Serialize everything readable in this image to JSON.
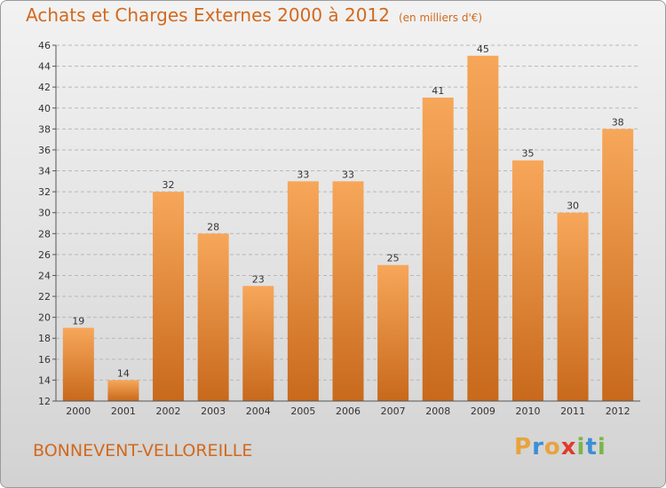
{
  "header": {
    "title": "Achats et Charges Externes 2000 à 2012",
    "unit": "(en milliers d'€)"
  },
  "footer": {
    "commune": "BONNEVENT-VELLOREILLE"
  },
  "logo": {
    "letters": [
      "P",
      "r",
      "o",
      "x",
      "i",
      "t",
      "i"
    ],
    "colors": [
      "#e8a33d",
      "#3b8fd6",
      "#e8a33d",
      "#e23a2a",
      "#7ab648",
      "#3b8fd6",
      "#7ab648"
    ]
  },
  "colors": {
    "accent": "#d2691e",
    "bar_top": "#f7a75a",
    "bar_bottom": "#c8691c"
  },
  "chart_data": {
    "type": "bar",
    "title": "Achats et Charges Externes 2000 à 2012",
    "subtitle": "(en milliers d'€)",
    "categories": [
      "2000",
      "2001",
      "2002",
      "2003",
      "2004",
      "2005",
      "2006",
      "2007",
      "2008",
      "2009",
      "2010",
      "2011",
      "2012"
    ],
    "values": [
      19,
      14,
      32,
      28,
      23,
      33,
      33,
      25,
      41,
      45,
      35,
      30,
      38
    ],
    "ylim": [
      12,
      46
    ],
    "yticks": [
      12,
      14,
      16,
      18,
      20,
      22,
      24,
      26,
      28,
      30,
      32,
      34,
      36,
      38,
      40,
      42,
      44,
      46
    ],
    "grid": true,
    "data_labels": true
  }
}
